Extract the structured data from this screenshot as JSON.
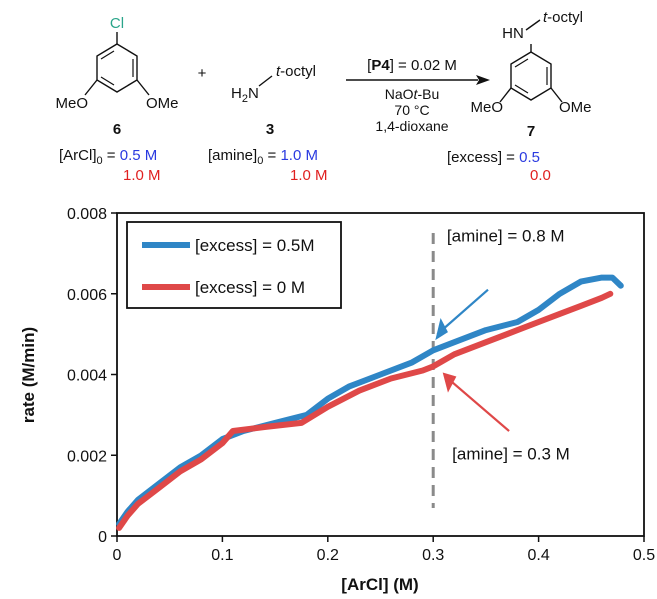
{
  "scheme": {
    "aryl_substituent": "Cl",
    "ome_left": "MeO",
    "ome_right": "OMe",
    "plus": "+",
    "amine_h2n": "H",
    "amine_sub": "2",
    "amine_n": "N",
    "t_octyl": "t",
    "t_octyl_rest": "-octyl",
    "hn": "HN",
    "compound_6": "6",
    "compound_3": "3",
    "compound_7": "7",
    "arcl_label_pre": "[ArCl]",
    "arcl_label_sub": "0",
    "arcl_label_eq": " = ",
    "arcl_value_1": "0.5 M",
    "arcl_value_2": "1.0 M",
    "amine_label_pre": "[amine]",
    "amine_label_sub": "0",
    "amine_label_eq": " = ",
    "amine_value_1": "1.0 M",
    "amine_value_2": "1.0 M",
    "excess_label": "[excess] = ",
    "excess_value_1": "0.5",
    "excess_value_2": "0.0",
    "cond_p4_open": "[",
    "cond_p4": "P4",
    "cond_p4_close": "] = 0.02 M",
    "cond_base_a": "NaO",
    "cond_base_t": "t",
    "cond_base_b": "-Bu",
    "cond_temp": "70 °C",
    "cond_solvent": "1,4-dioxane",
    "color_blue_text": "#2a3ae0",
    "color_red_text": "#e01f1f",
    "color_cl": "#2aa58a"
  },
  "chart_data": {
    "type": "line",
    "xlabel": "[ArCl] (M)",
    "ylabel": "rate (M/min)",
    "xlim": [
      0,
      0.5
    ],
    "ylim": [
      0,
      0.008
    ],
    "xticks": [
      "0",
      "0.1",
      "0.2",
      "0.3",
      "0.4",
      "0.5"
    ],
    "yticks": [
      "0",
      "0.002",
      "0.004",
      "0.006",
      "0.008"
    ],
    "legend_position": "top-left",
    "series": [
      {
        "name": "[excess] = 0.5M",
        "color": "#2f86c6",
        "x": [
          0.002,
          0.01,
          0.02,
          0.04,
          0.06,
          0.08,
          0.1,
          0.12,
          0.15,
          0.18,
          0.2,
          0.22,
          0.25,
          0.28,
          0.3,
          0.32,
          0.35,
          0.38,
          0.4,
          0.42,
          0.44,
          0.46,
          0.47,
          0.478
        ],
        "y": [
          0.0003,
          0.0006,
          0.0009,
          0.0013,
          0.0017,
          0.002,
          0.0024,
          0.0026,
          0.0028,
          0.003,
          0.0034,
          0.0037,
          0.004,
          0.0043,
          0.0046,
          0.0048,
          0.0051,
          0.0053,
          0.0056,
          0.006,
          0.0063,
          0.0064,
          0.0064,
          0.0062
        ]
      },
      {
        "name": "[excess] = 0 M",
        "color": "#df4848",
        "x": [
          0.002,
          0.01,
          0.02,
          0.04,
          0.06,
          0.08,
          0.1,
          0.11,
          0.14,
          0.175,
          0.2,
          0.23,
          0.26,
          0.29,
          0.3,
          0.32,
          0.35,
          0.38,
          0.4,
          0.42,
          0.44,
          0.46,
          0.468
        ],
        "y": [
          0.0002,
          0.0005,
          0.0008,
          0.0012,
          0.0016,
          0.0019,
          0.0023,
          0.0026,
          0.0027,
          0.0028,
          0.0032,
          0.0036,
          0.0039,
          0.0041,
          0.0042,
          0.0045,
          0.0048,
          0.0051,
          0.0053,
          0.0055,
          0.0057,
          0.0059,
          0.006
        ]
      }
    ],
    "vline": {
      "x": 0.3,
      "style": "dashed",
      "color": "#8a8a8a"
    },
    "annotations": [
      {
        "text": "[amine] = 0.8 M",
        "color": "#2f86c6",
        "x": 0.3,
        "y": 0.0047
      },
      {
        "text": "[amine] = 0.3 M",
        "color": "#df4848",
        "x": 0.3,
        "y": 0.0041
      }
    ]
  }
}
